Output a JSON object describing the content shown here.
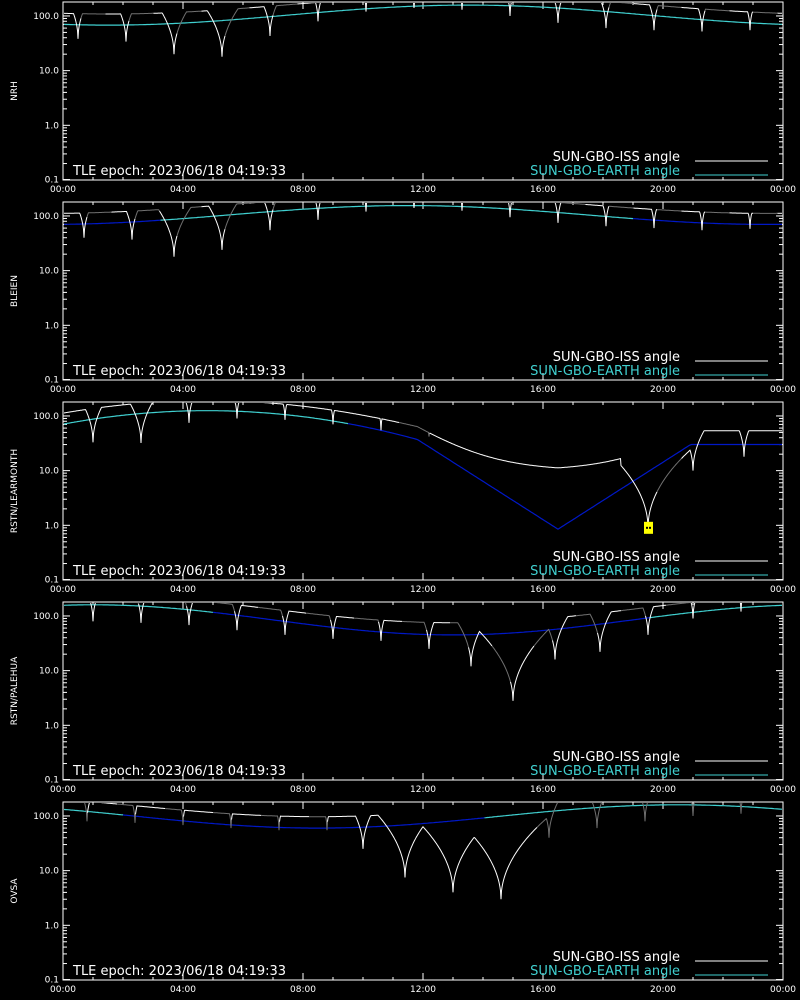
{
  "colors": {
    "background": "#000000",
    "axis": "#ffffff",
    "iss_visible": "#ffffff",
    "iss_hidden": "#707070",
    "earth_day": "#40d0d0",
    "earth_night": "#0018c8",
    "flag": "#ffff00"
  },
  "chart_data": [
    {
      "type": "line",
      "station": "NRH",
      "epoch_text": "TLE epoch: 2023/06/18 04:19:33",
      "yscale": "log",
      "ylim": [
        0.1,
        180
      ],
      "xlim": [
        0,
        24
      ],
      "x_ticks": [
        "00:00",
        "04:00",
        "08:00",
        "12:00",
        "16:00",
        "20:00",
        "00:00"
      ],
      "y_ticks": [
        "0.1",
        "1.0",
        "10.0",
        "100.0"
      ],
      "legend": [
        "SUN-GBO-ISS angle",
        "SUN-GBO-EARTH angle"
      ],
      "legend_position": "bottom-right",
      "earth_curve": {
        "min": 68,
        "max": 158,
        "peak_hour": 13.5,
        "width": 10
      },
      "earth_night_intervals": [],
      "iss_events": [
        [
          0.5,
          38
        ],
        [
          2.1,
          34
        ],
        [
          3.7,
          20
        ],
        [
          5.3,
          18
        ],
        [
          6.9,
          43
        ],
        [
          8.5,
          80
        ],
        [
          10.1,
          120
        ],
        [
          11.7,
          140
        ],
        [
          13.3,
          130
        ],
        [
          14.9,
          100
        ],
        [
          16.5,
          75
        ],
        [
          18.1,
          60
        ],
        [
          19.7,
          55
        ],
        [
          21.3,
          52
        ],
        [
          22.9,
          55
        ]
      ],
      "iss_hidden_intervals": [
        [
          0.6,
          1.4
        ],
        [
          2.2,
          3.0
        ],
        [
          3.8,
          4.6
        ],
        [
          5.4,
          6.2
        ],
        [
          7.0,
          7.8
        ],
        [
          8.6,
          9.4
        ],
        [
          10.2,
          11.0
        ],
        [
          11.8,
          12.6
        ],
        [
          13.4,
          14.2
        ],
        [
          15.0,
          15.8
        ],
        [
          16.6,
          17.4
        ],
        [
          18.2,
          19.0
        ],
        [
          19.8,
          20.6
        ],
        [
          21.4,
          22.2
        ],
        [
          23.0,
          23.8
        ]
      ],
      "flags": []
    },
    {
      "type": "line",
      "station": "BLEIEN",
      "epoch_text": "TLE epoch: 2023/06/18 04:19:33",
      "yscale": "log",
      "ylim": [
        0.1,
        180
      ],
      "xlim": [
        0,
        24
      ],
      "x_ticks": [
        "00:00",
        "04:00",
        "08:00",
        "12:00",
        "16:00",
        "20:00",
        "00:00"
      ],
      "y_ticks": [
        "0.1",
        "1.0",
        "10.0",
        "100.0"
      ],
      "legend": [
        "SUN-GBO-ISS angle",
        "SUN-GBO-EARTH angle"
      ],
      "legend_position": "bottom-right",
      "earth_curve": {
        "min": 70,
        "max": 155,
        "peak_hour": 11.5,
        "width": 10
      },
      "earth_night_intervals": [
        [
          0,
          3.2
        ],
        [
          19.0,
          24
        ]
      ],
      "iss_events": [
        [
          0.7,
          40
        ],
        [
          2.3,
          37
        ],
        [
          3.7,
          18
        ],
        [
          5.3,
          24
        ],
        [
          6.9,
          55
        ],
        [
          8.5,
          85
        ],
        [
          10.1,
          120
        ],
        [
          11.7,
          140
        ],
        [
          13.3,
          125
        ],
        [
          14.9,
          95
        ],
        [
          16.5,
          75
        ],
        [
          18.1,
          65
        ],
        [
          19.7,
          60
        ],
        [
          21.3,
          55
        ],
        [
          22.9,
          58
        ]
      ],
      "iss_hidden_intervals": [
        [
          0.8,
          1.6
        ],
        [
          2.4,
          3.2
        ],
        [
          3.8,
          4.6
        ],
        [
          5.4,
          6.2
        ],
        [
          7.0,
          7.8
        ],
        [
          8.6,
          9.4
        ],
        [
          10.2,
          11.0
        ],
        [
          11.8,
          12.6
        ],
        [
          13.4,
          14.2
        ],
        [
          15.0,
          15.8
        ],
        [
          16.6,
          17.4
        ],
        [
          18.2,
          19.0
        ],
        [
          19.8,
          20.6
        ],
        [
          21.4,
          22.2
        ],
        [
          23.0,
          23.8
        ]
      ],
      "flags": []
    },
    {
      "type": "line",
      "station": "RSTN/LEARMONTH",
      "epoch_text": "TLE epoch: 2023/06/18 04:19:33",
      "yscale": "log",
      "ylim": [
        0.1,
        180
      ],
      "xlim": [
        0,
        24
      ],
      "x_ticks": [
        "00:00",
        "04:00",
        "08:00",
        "12:00",
        "16:00",
        "20:00",
        "00:00"
      ],
      "y_ticks": [
        "0.1",
        "1.0",
        "10.0",
        "100.0"
      ],
      "legend": [
        "SUN-GBO-ISS angle",
        "SUN-GBO-EARTH angle"
      ],
      "legend_position": "bottom-right",
      "earth_curve": {
        "min": 0.85,
        "max": 125,
        "peak_hour": 4.8,
        "width": 4.5,
        "dip_hour": 16.5
      },
      "earth_night_intervals": [
        [
          9.5,
          24
        ]
      ],
      "iss_events": [
        [
          1.0,
          33
        ],
        [
          2.6,
          32
        ],
        [
          4.2,
          75
        ],
        [
          5.8,
          90
        ],
        [
          7.4,
          85
        ],
        [
          9.0,
          70
        ],
        [
          10.6,
          55
        ],
        [
          12.2,
          42
        ],
        [
          13.8,
          30
        ],
        [
          15.4,
          26
        ],
        [
          17.0,
          22
        ],
        [
          18.6,
          20
        ],
        [
          19.5,
          0.9
        ],
        [
          21.0,
          10
        ],
        [
          22.7,
          18
        ]
      ],
      "iss_hidden_intervals": [
        [
          11.2,
          12.2
        ],
        [
          19.8,
          20.6
        ]
      ],
      "flags": [
        {
          "hour": 19.5,
          "value": 0.9
        }
      ]
    },
    {
      "type": "line",
      "station": "RSTN/PALEHUA",
      "epoch_text": "TLE epoch: 2023/06/18 04:19:33",
      "yscale": "log",
      "ylim": [
        0.1,
        180
      ],
      "xlim": [
        0,
        24
      ],
      "x_ticks": [
        "00:00",
        "04:00",
        "08:00",
        "12:00",
        "16:00",
        "20:00",
        "00:00"
      ],
      "y_ticks": [
        "0.1",
        "1.0",
        "10.0",
        "100.0"
      ],
      "legend": [
        "SUN-GBO-ISS angle",
        "SUN-GBO-EARTH angle"
      ],
      "legend_position": "bottom-right",
      "earth_curve": {
        "min": 45,
        "max": 160,
        "peak_hour": 1,
        "width": 10
      },
      "earth_night_intervals": [
        [
          5.0,
          19.5
        ]
      ],
      "iss_events": [
        [
          1.0,
          80
        ],
        [
          2.6,
          75
        ],
        [
          4.2,
          68
        ],
        [
          5.8,
          55
        ],
        [
          7.4,
          45
        ],
        [
          9.0,
          38
        ],
        [
          10.6,
          35
        ],
        [
          12.2,
          25
        ],
        [
          13.6,
          12
        ],
        [
          15.0,
          2.8
        ],
        [
          16.4,
          16
        ],
        [
          17.9,
          22
        ],
        [
          19.5,
          45
        ],
        [
          21.0,
          90
        ],
        [
          22.6,
          120
        ]
      ],
      "iss_hidden_intervals": [
        [
          0.1,
          0.9
        ],
        [
          1.7,
          2.5
        ],
        [
          3.3,
          4.1
        ],
        [
          4.9,
          5.7
        ],
        [
          6.5,
          7.3
        ],
        [
          8.1,
          8.9
        ],
        [
          9.7,
          10.5
        ],
        [
          11.3,
          12.1
        ],
        [
          12.9,
          13.5
        ],
        [
          14.3,
          14.9
        ],
        [
          15.7,
          16.3
        ],
        [
          17.1,
          17.8
        ],
        [
          18.6,
          19.4
        ],
        [
          20.1,
          20.9
        ],
        [
          21.7,
          22.5
        ]
      ],
      "flags": []
    },
    {
      "type": "line",
      "station": "OVSA",
      "epoch_text": "TLE epoch: 2023/06/18 04:19:33",
      "yscale": "log",
      "ylim": [
        0.1,
        180
      ],
      "xlim": [
        0,
        24
      ],
      "x_ticks": [
        "00:00",
        "04:00",
        "08:00",
        "12:00",
        "16:00",
        "20:00",
        "00:00"
      ],
      "y_ticks": [
        "0.1",
        "1.0",
        "10.0",
        "100.0"
      ],
      "legend": [
        "SUN-GBO-ISS angle",
        "SUN-GBO-EARTH angle"
      ],
      "legend_position": "bottom-right",
      "earth_curve": {
        "min": 60,
        "max": 160,
        "peak_hour": 20.5,
        "width": 8
      },
      "earth_night_intervals": [
        [
          2.0,
          14.0
        ]
      ],
      "iss_events": [
        [
          0.8,
          80
        ],
        [
          2.4,
          75
        ],
        [
          4.0,
          68
        ],
        [
          5.6,
          60
        ],
        [
          7.2,
          55
        ],
        [
          8.8,
          55
        ],
        [
          10.0,
          25
        ],
        [
          11.4,
          7.5
        ],
        [
          13.0,
          4.0
        ],
        [
          14.6,
          3.0
        ],
        [
          16.2,
          40
        ],
        [
          17.8,
          60
        ],
        [
          19.4,
          80
        ],
        [
          21.0,
          100
        ],
        [
          22.6,
          110
        ]
      ],
      "iss_hidden_intervals": [
        [
          0.2,
          0.8
        ],
        [
          1.8,
          2.4
        ],
        [
          3.4,
          4.0
        ],
        [
          5.0,
          5.6
        ],
        [
          6.6,
          7.2
        ],
        [
          8.2,
          8.8
        ],
        [
          15.8,
          16.6
        ],
        [
          17.4,
          18.2
        ],
        [
          19.0,
          19.8
        ],
        [
          20.6,
          21.4
        ],
        [
          22.2,
          23.0
        ]
      ],
      "flags": []
    }
  ]
}
